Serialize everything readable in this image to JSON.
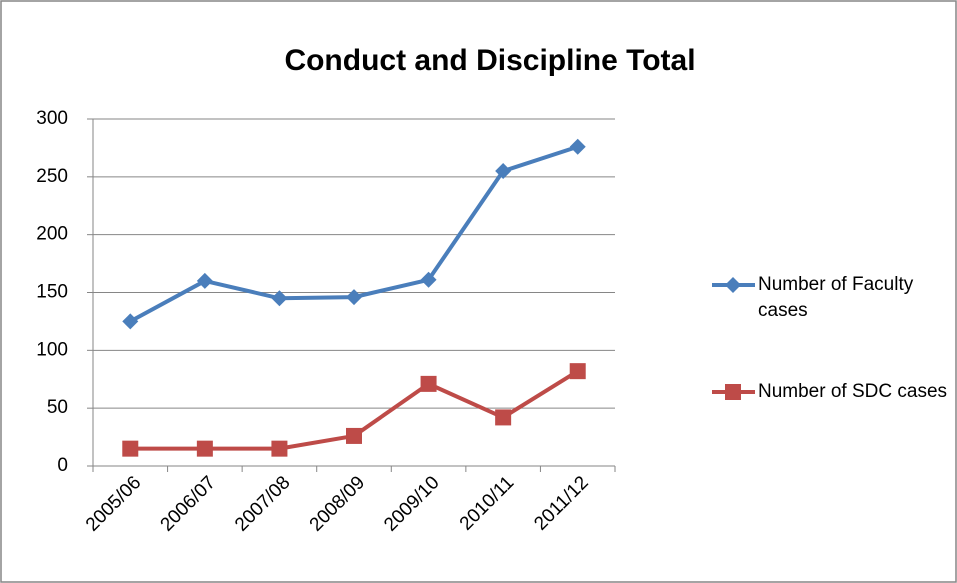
{
  "chart_data": {
    "type": "line",
    "title": "Conduct and Discipline Total",
    "categories": [
      "2005/06",
      "2006/07",
      "2007/08",
      "2008/09",
      "2009/10",
      "2010/11",
      "2011/12"
    ],
    "series": [
      {
        "name": "Number of Faculty cases",
        "color": "#4a7ebb",
        "marker": "diamond",
        "values": [
          125,
          160,
          145,
          146,
          161,
          255,
          276
        ]
      },
      {
        "name": "Number of SDC cases",
        "color": "#be4b48",
        "marker": "square",
        "values": [
          15,
          15,
          15,
          26,
          71,
          42,
          82
        ]
      }
    ],
    "ylim": [
      0,
      300
    ],
    "yticks": [
      0,
      50,
      100,
      150,
      200,
      250,
      300
    ],
    "grid": true,
    "legend": "right"
  }
}
